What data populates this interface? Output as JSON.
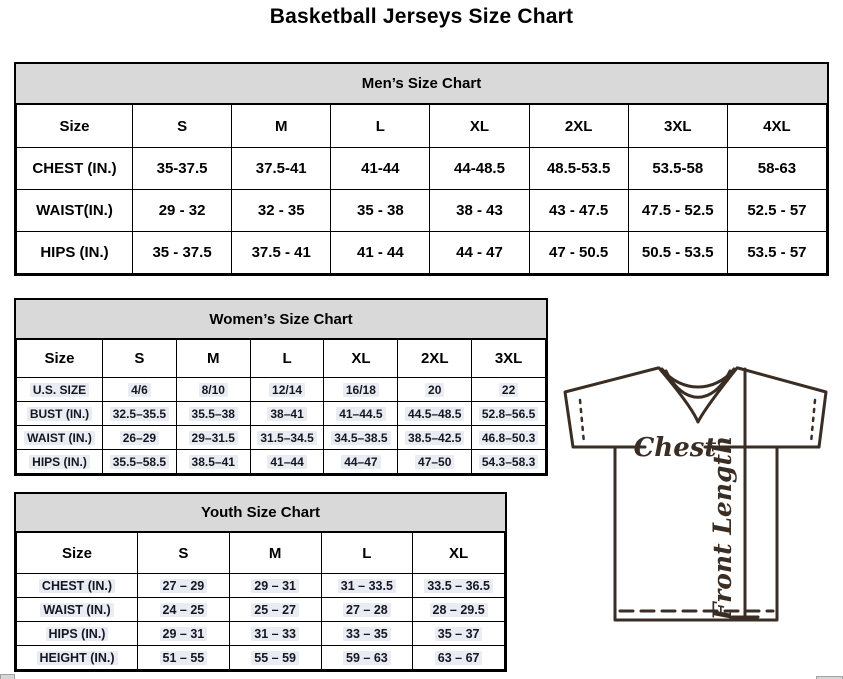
{
  "page_title": "Basketball Jerseys Size Chart",
  "mens_chart": {
    "title": "Men’s Size Chart",
    "columns": [
      "Size",
      "S",
      "M",
      "L",
      "XL",
      "2XL",
      "3XL",
      "4XL"
    ],
    "rows": [
      {
        "label": "CHEST (IN.)",
        "values": [
          "35-37.5",
          "37.5-41",
          "41-44",
          "44-48.5",
          "48.5-53.5",
          "53.5-58",
          "58-63"
        ]
      },
      {
        "label": "WAIST(IN.)",
        "values": [
          "29 - 32",
          "32 - 35",
          "35 - 38",
          "38 - 43",
          "43 - 47.5",
          "47.5 - 52.5",
          "52.5 - 57"
        ]
      },
      {
        "label": "HIPS (IN.)",
        "values": [
          "35 - 37.5",
          "37.5 - 41",
          "41 - 44",
          "44 - 47",
          "47 - 50.5",
          "50.5 - 53.5",
          "53.5 - 57"
        ]
      }
    ]
  },
  "womens_chart": {
    "title": "Women’s Size Chart",
    "columns": [
      "Size",
      "S",
      "M",
      "L",
      "XL",
      "2XL",
      "3XL"
    ],
    "rows": [
      {
        "label": "U.S. SIZE",
        "values": [
          "4/6",
          "8/10",
          "12/14",
          "16/18",
          "20",
          "22"
        ]
      },
      {
        "label": "BUST (IN.)",
        "values": [
          "32.5–35.5",
          "35.5–38",
          "38–41",
          "41–44.5",
          "44.5–48.5",
          "52.8–56.5"
        ]
      },
      {
        "label": "WAIST (IN.)",
        "values": [
          "26–29",
          "29–31.5",
          "31.5–34.5",
          "34.5–38.5",
          "38.5–42.5",
          "46.8–50.3"
        ]
      },
      {
        "label": "HIPS (IN.)",
        "values": [
          "35.5–58.5",
          "38.5–41",
          "41–44",
          "44–47",
          "47–50",
          "54.3–58.3"
        ]
      }
    ]
  },
  "youth_chart": {
    "title": "Youth Size Chart",
    "columns": [
      "Size",
      "S",
      "M",
      "L",
      "XL"
    ],
    "rows": [
      {
        "label": "CHEST (IN.)",
        "values": [
          "27 – 29",
          "29 – 31",
          "31 – 33.5",
          "33.5 – 36.5"
        ]
      },
      {
        "label": "WAIST (IN.)",
        "values": [
          "24 – 25",
          "25 – 27",
          "27 – 28",
          "28 – 29.5"
        ]
      },
      {
        "label": "HIPS (IN.)",
        "values": [
          "29 – 31",
          "31 – 33",
          "33 – 35",
          "35 – 37"
        ]
      },
      {
        "label": "HEIGHT (IN.)",
        "values": [
          "51 – 55",
          "55 – 59",
          "59 – 63",
          "63 – 67"
        ]
      }
    ]
  },
  "diagram": {
    "chest_label": "Chest",
    "front_length_label": "Front Length"
  },
  "colors": {
    "table_header_bg": "#d9d9d9",
    "table_border": "#000000",
    "value_shading": "#e9edf3",
    "diagram_line": "#3a2d24",
    "scrollbar_gray": "#d6d6d6"
  }
}
